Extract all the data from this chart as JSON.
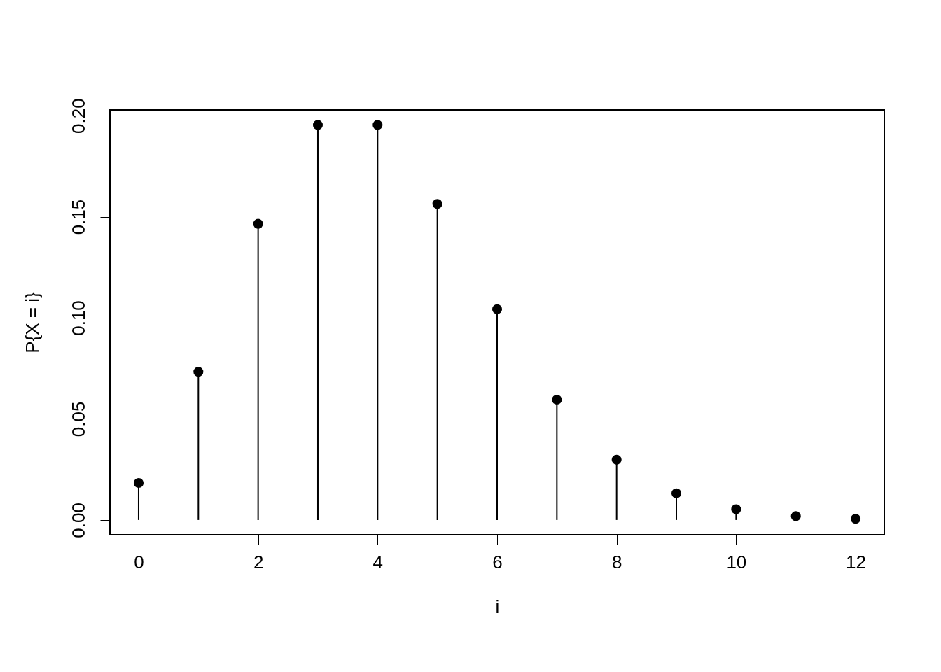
{
  "chart_data": {
    "type": "lollipop",
    "xlabel": "i",
    "ylabel": "P{X = i}",
    "x": [
      0,
      1,
      2,
      3,
      4,
      5,
      6,
      7,
      8,
      9,
      10,
      11,
      12
    ],
    "values": [
      0.0183,
      0.0733,
      0.1465,
      0.1954,
      0.1954,
      0.1563,
      0.1042,
      0.0595,
      0.0298,
      0.0132,
      0.0053,
      0.0019,
      0.0006
    ],
    "color": "#000000",
    "marker": "circle",
    "xlim": [
      -0.48,
      12.48
    ],
    "ylim": [
      -0.0073,
      0.2028
    ],
    "xticks": [
      0,
      2,
      4,
      6,
      8,
      10,
      12
    ],
    "yticks": [
      {
        "value": 0,
        "label": "0.00"
      },
      {
        "value": 0.05,
        "label": "0.05"
      },
      {
        "value": 0.1,
        "label": "0.10"
      },
      {
        "value": 0.15,
        "label": "0.15"
      },
      {
        "value": 0.2,
        "label": "0.20"
      }
    ]
  }
}
